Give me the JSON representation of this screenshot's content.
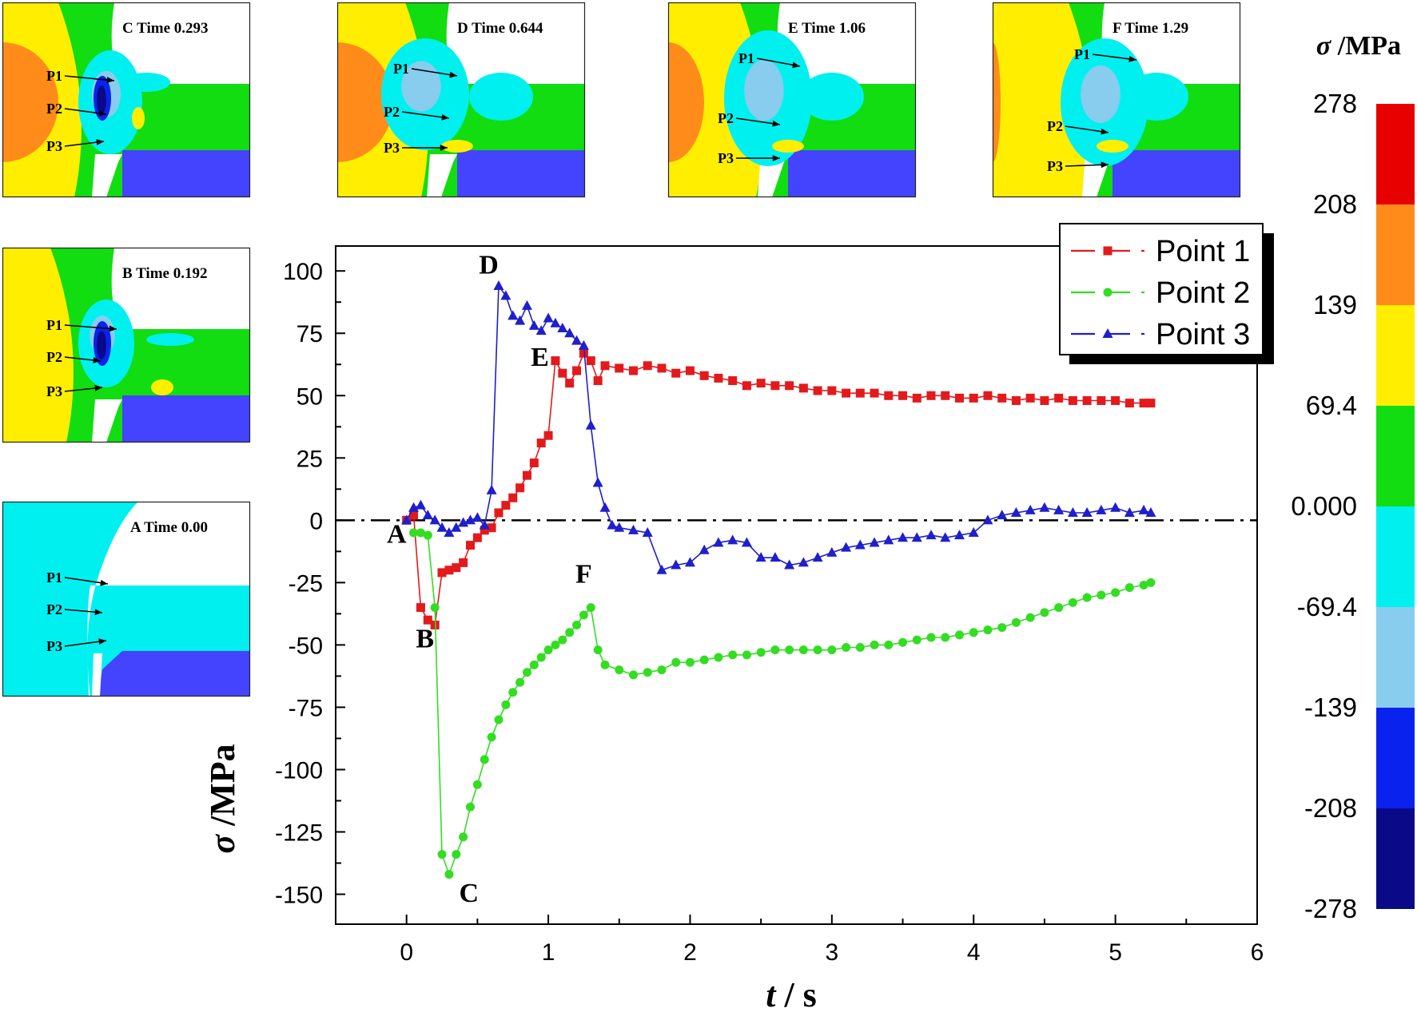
{
  "chart_data": {
    "type": "line",
    "xlabel_italic": "t",
    "xlabel_rest": " / s",
    "ylabel_italic": "σ",
    "ylabel_rest": " /MPa",
    "xlim": [
      -0.5,
      6
    ],
    "ylim": [
      -162,
      110
    ],
    "xticks": [
      0,
      1,
      2,
      3,
      4,
      5,
      6
    ],
    "xtick_labels": [
      "0",
      "1",
      "2",
      "3",
      "4",
      "5",
      "6"
    ],
    "yticks": [
      100,
      75,
      50,
      25,
      0,
      -25,
      -50,
      -75,
      -100,
      -125,
      -150
    ],
    "ytick_labels": [
      "100",
      "75",
      "50",
      "25",
      "0",
      "-25",
      "-50",
      "-75",
      "-100",
      "-125",
      "-150"
    ],
    "reference_line": {
      "y": 0,
      "style": "dash-dot"
    },
    "legend_position": "top-right",
    "series": [
      {
        "name": "Point 1",
        "color": "#e31a1c",
        "marker": "square",
        "x": [
          0.0,
          0.05,
          0.1,
          0.15,
          0.2,
          0.25,
          0.3,
          0.35,
          0.4,
          0.45,
          0.5,
          0.55,
          0.6,
          0.65,
          0.7,
          0.75,
          0.8,
          0.85,
          0.9,
          0.95,
          1.0,
          1.05,
          1.1,
          1.15,
          1.2,
          1.25,
          1.3,
          1.35,
          1.4,
          1.5,
          1.6,
          1.7,
          1.8,
          1.9,
          2.0,
          2.1,
          2.2,
          2.3,
          2.4,
          2.5,
          2.6,
          2.7,
          2.8,
          2.9,
          3.0,
          3.1,
          3.2,
          3.3,
          3.4,
          3.5,
          3.6,
          3.7,
          3.8,
          3.9,
          4.0,
          4.1,
          4.2,
          4.3,
          4.4,
          4.5,
          4.6,
          4.7,
          4.8,
          4.9,
          5.0,
          5.1,
          5.2,
          5.25
        ],
        "y": [
          0,
          2,
          -35,
          -40,
          -42,
          -21,
          -20,
          -19,
          -17,
          -10,
          -7,
          -4,
          -3,
          3,
          6,
          9,
          13,
          18,
          23,
          31,
          34,
          64,
          59,
          55,
          60,
          67,
          64,
          56,
          62,
          61,
          60,
          62,
          61,
          59,
          60,
          58,
          57,
          56,
          54,
          55,
          54,
          54,
          53,
          52,
          52,
          51,
          51,
          51,
          50,
          50,
          49,
          50,
          50,
          49,
          49,
          50,
          49,
          48,
          49,
          48,
          49,
          48,
          48,
          48,
          48,
          47,
          47,
          47
        ]
      },
      {
        "name": "Point 2",
        "color": "#33dd22",
        "marker": "circle",
        "x": [
          0.05,
          0.1,
          0.15,
          0.2,
          0.25,
          0.3,
          0.35,
          0.4,
          0.45,
          0.5,
          0.55,
          0.6,
          0.65,
          0.7,
          0.75,
          0.8,
          0.85,
          0.9,
          0.95,
          1.0,
          1.05,
          1.1,
          1.15,
          1.2,
          1.25,
          1.3,
          1.35,
          1.4,
          1.5,
          1.6,
          1.7,
          1.8,
          1.9,
          2.0,
          2.1,
          2.2,
          2.3,
          2.4,
          2.5,
          2.6,
          2.7,
          2.8,
          2.9,
          3.0,
          3.1,
          3.2,
          3.3,
          3.4,
          3.5,
          3.6,
          3.7,
          3.8,
          3.9,
          4.0,
          4.1,
          4.2,
          4.3,
          4.4,
          4.5,
          4.6,
          4.7,
          4.8,
          4.9,
          5.0,
          5.1,
          5.2,
          5.25
        ],
        "y": [
          -5,
          -5,
          -6,
          -35,
          -134,
          -142,
          -134,
          -127,
          -115,
          -106,
          -96,
          -87,
          -80,
          -74,
          -69,
          -65,
          -61,
          -58,
          -55,
          -52,
          -50,
          -48,
          -45,
          -42,
          -38,
          -35,
          -52,
          -58,
          -60,
          -62,
          -61,
          -60,
          -57,
          -57,
          -56,
          -55,
          -54,
          -54,
          -53,
          -52,
          -52,
          -52,
          -52,
          -52,
          -51,
          -51,
          -50,
          -50,
          -49,
          -48,
          -47,
          -47,
          -46,
          -45,
          -44,
          -43,
          -41,
          -39,
          -37,
          -35,
          -33,
          -31,
          -30,
          -29,
          -27,
          -26,
          -25
        ]
      },
      {
        "name": "Point 3",
        "color": "#1f1fcc",
        "marker": "triangle",
        "x": [
          0.0,
          0.05,
          0.1,
          0.15,
          0.2,
          0.25,
          0.3,
          0.35,
          0.4,
          0.45,
          0.5,
          0.55,
          0.6,
          0.65,
          0.7,
          0.75,
          0.8,
          0.85,
          0.9,
          0.95,
          1.0,
          1.05,
          1.1,
          1.15,
          1.2,
          1.25,
          1.3,
          1.35,
          1.4,
          1.45,
          1.5,
          1.6,
          1.7,
          1.8,
          1.9,
          2.0,
          2.1,
          2.2,
          2.3,
          2.4,
          2.5,
          2.6,
          2.7,
          2.8,
          2.9,
          3.0,
          3.1,
          3.2,
          3.3,
          3.4,
          3.5,
          3.6,
          3.7,
          3.8,
          3.9,
          4.0,
          4.1,
          4.2,
          4.3,
          4.4,
          4.5,
          4.6,
          4.7,
          4.8,
          4.9,
          5.0,
          5.1,
          5.2,
          5.25
        ],
        "y": [
          0,
          5,
          6,
          2,
          0,
          -3,
          -5,
          -3,
          -1,
          0,
          1,
          -2,
          12,
          94,
          90,
          82,
          80,
          86,
          78,
          76,
          81,
          79,
          77,
          75,
          72,
          70,
          38,
          15,
          5,
          -2,
          -3,
          -4,
          -5,
          -20,
          -18,
          -17,
          -12,
          -9,
          -8,
          -9,
          -15,
          -15,
          -18,
          -17,
          -15,
          -13,
          -11,
          -10,
          -9,
          -8,
          -7,
          -7,
          -6,
          -7,
          -6,
          -5,
          0,
          2,
          3,
          4,
          5,
          4,
          3,
          3,
          4,
          5,
          3,
          4,
          3
        ]
      }
    ],
    "point_labels": [
      {
        "text": "A",
        "x": -0.07,
        "y": -9
      },
      {
        "text": "B",
        "x": 0.13,
        "y": -51
      },
      {
        "text": "C",
        "x": 0.44,
        "y": -153
      },
      {
        "text": "D",
        "x": 0.58,
        "y": 99
      },
      {
        "text": "E",
        "x": 0.94,
        "y": 62
      },
      {
        "text": "F",
        "x": 1.25,
        "y": -25
      }
    ],
    "colorbar": {
      "title_italic": "σ",
      "title_rest": " /MPa",
      "tick_labels": [
        "278",
        "208",
        "139",
        "69.4",
        "0.000",
        "-69.4",
        "-139",
        "-208",
        "-278"
      ],
      "colors": [
        "#e60000",
        "#ff8c1a",
        "#ffee00",
        "#11dd11",
        "#00f0f0",
        "#88ccee",
        "#0a22ee",
        "#0a0a88"
      ]
    }
  },
  "legend": [
    {
      "label": "Point 1",
      "color": "#e31a1c"
    },
    {
      "label": "Point 2",
      "color": "#33dd22"
    },
    {
      "label": "Point 3",
      "color": "#1f1fcc"
    }
  ],
  "insets": [
    {
      "id": "C",
      "label": "C Time 0.293"
    },
    {
      "id": "D",
      "label": "D Time 0.644"
    },
    {
      "id": "E",
      "label": "E Time 1.06"
    },
    {
      "id": "F",
      "label": "F Time 1.29"
    },
    {
      "id": "B",
      "label": "B Time 0.192"
    },
    {
      "id": "A",
      "label": "A Time 0.00"
    }
  ],
  "inset_point_labels": [
    "P1",
    "P2",
    "P3"
  ],
  "inset_colors": {
    "orange": "#ff8c1a",
    "yellow": "#ffee00",
    "green": "#11dd11",
    "cyan": "#00f0f0",
    "lightblue": "#88ccee",
    "blue": "#0a22ee",
    "navy": "#0a0a88",
    "periwinkle": "#4444ff",
    "white": "#ffffff"
  }
}
